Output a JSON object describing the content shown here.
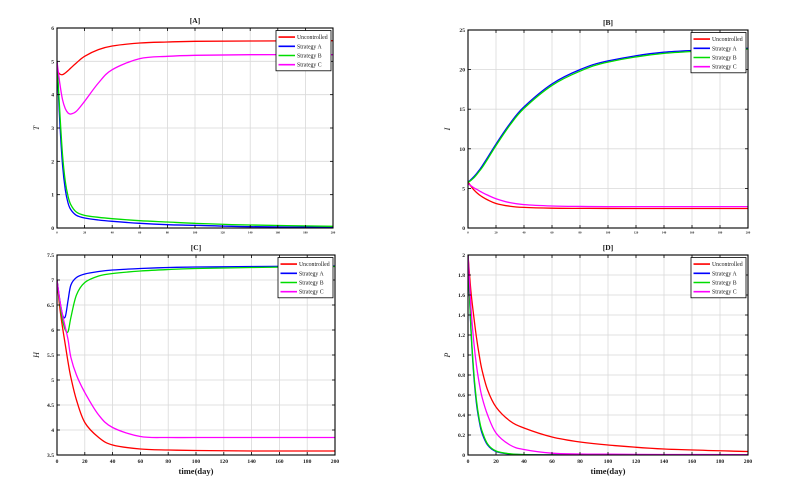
{
  "figure": {
    "background": "#ffffff",
    "grid_color": "#d9d9d9",
    "box_color": "#000000",
    "text_color": "#1a1a1a"
  },
  "chart_data": [
    {
      "id": "A",
      "type": "line",
      "title": "[A]",
      "xlabel": "",
      "ylabel": "T",
      "xlim": [
        0,
        200
      ],
      "ylim": [
        0,
        6
      ],
      "xticks": [
        0,
        20,
        40,
        60,
        80,
        100,
        120,
        140,
        160,
        180,
        200
      ],
      "xtick_labels": [
        "0",
        "20",
        "40",
        "60",
        "80",
        "100",
        "120",
        "140",
        "160",
        "180",
        "200"
      ],
      "xtick_labels_tiny": true,
      "yticks": [
        0,
        1,
        2,
        3,
        4,
        5,
        6
      ],
      "ytick_labels": [
        "0",
        "1",
        "2",
        "3",
        "4",
        "5",
        "6"
      ],
      "grid": true,
      "legend_position": "top-right",
      "x": [
        0,
        2,
        4,
        6,
        8,
        10,
        14,
        20,
        30,
        40,
        60,
        80,
        100,
        140,
        200
      ],
      "series": [
        {
          "name": "Uncontrolled",
          "color": "#ff0000",
          "values": [
            4.72,
            4.62,
            4.6,
            4.65,
            4.72,
            4.8,
            4.95,
            5.15,
            5.35,
            5.46,
            5.55,
            5.58,
            5.6,
            5.61,
            5.62
          ]
        },
        {
          "name": "Strategy A",
          "color": "#0000ff",
          "values": [
            5.0,
            3.2,
            1.9,
            1.15,
            0.75,
            0.55,
            0.38,
            0.3,
            0.24,
            0.2,
            0.14,
            0.1,
            0.08,
            0.04,
            0.02
          ]
        },
        {
          "name": "Strategy B",
          "color": "#00dd00",
          "values": [
            5.0,
            3.5,
            2.2,
            1.4,
            0.95,
            0.7,
            0.48,
            0.38,
            0.32,
            0.28,
            0.22,
            0.18,
            0.14,
            0.09,
            0.05
          ]
        },
        {
          "name": "Strategy C",
          "color": "#ff00ff",
          "values": [
            5.0,
            4.35,
            3.85,
            3.58,
            3.45,
            3.42,
            3.5,
            3.8,
            4.35,
            4.75,
            5.08,
            5.15,
            5.18,
            5.2,
            5.2
          ]
        }
      ]
    },
    {
      "id": "B",
      "type": "line",
      "title": "[B]",
      "xlabel": "",
      "ylabel": "I",
      "xlim": [
        0,
        200
      ],
      "ylim": [
        0,
        25
      ],
      "xticks": [
        0,
        20,
        40,
        60,
        80,
        100,
        120,
        140,
        160,
        180,
        200
      ],
      "xtick_labels": [
        "0",
        "20",
        "40",
        "60",
        "80",
        "100",
        "120",
        "140",
        "160",
        "180",
        "200"
      ],
      "xtick_labels_tiny": true,
      "yticks": [
        0,
        5,
        10,
        15,
        20,
        25
      ],
      "ytick_labels": [
        "0",
        "5",
        "10",
        "15",
        "20",
        "25"
      ],
      "grid": true,
      "legend_position": "top-right",
      "x": [
        0,
        2,
        4,
        6,
        8,
        10,
        14,
        20,
        30,
        40,
        60,
        80,
        100,
        140,
        200
      ],
      "series": [
        {
          "name": "Uncontrolled",
          "color": "#ff0000",
          "values": [
            5.8,
            5.3,
            4.85,
            4.5,
            4.2,
            3.95,
            3.55,
            3.1,
            2.75,
            2.6,
            2.5,
            2.48,
            2.47,
            2.46,
            2.46
          ]
        },
        {
          "name": "Strategy A",
          "color": "#0000ff",
          "values": [
            5.8,
            6.1,
            6.45,
            6.85,
            7.3,
            7.8,
            8.9,
            10.6,
            13.2,
            15.3,
            18.2,
            20.0,
            21.1,
            22.2,
            22.7
          ]
        },
        {
          "name": "Strategy B",
          "color": "#00dd00",
          "values": [
            5.75,
            6.0,
            6.3,
            6.7,
            7.15,
            7.6,
            8.7,
            10.4,
            13.0,
            15.1,
            18.0,
            19.8,
            20.95,
            22.05,
            22.6
          ]
        },
        {
          "name": "Strategy C",
          "color": "#ff00ff",
          "values": [
            5.6,
            5.35,
            5.1,
            4.9,
            4.7,
            4.5,
            4.15,
            3.7,
            3.2,
            2.95,
            2.78,
            2.72,
            2.7,
            2.7,
            2.7
          ]
        }
      ]
    },
    {
      "id": "C",
      "type": "line",
      "title": "[C]",
      "xlabel": "time(day)",
      "ylabel": "H",
      "xlim": [
        0,
        200
      ],
      "ylim": [
        3.5,
        7.5
      ],
      "xticks": [
        0,
        20,
        40,
        60,
        80,
        100,
        120,
        140,
        160,
        180,
        200
      ],
      "xtick_labels": [
        "0",
        "20",
        "40",
        "60",
        "80",
        "100",
        "120",
        "140",
        "160",
        "180",
        "200"
      ],
      "xtick_labels_tiny": false,
      "yticks": [
        3.5,
        4,
        4.5,
        5,
        5.5,
        6,
        6.5,
        7,
        7.5
      ],
      "ytick_labels": [
        "3.5",
        "4",
        "4.5",
        "5",
        "5.5",
        "6",
        "6.5",
        "7",
        "7.5"
      ],
      "grid": true,
      "legend_position": "top-right",
      "x": [
        0,
        2,
        4,
        6,
        8,
        10,
        14,
        20,
        30,
        40,
        60,
        80,
        100,
        140,
        200
      ],
      "series": [
        {
          "name": "Uncontrolled",
          "color": "#ff0000",
          "values": [
            7.0,
            6.45,
            6.05,
            5.7,
            5.35,
            5.05,
            4.6,
            4.15,
            3.85,
            3.7,
            3.62,
            3.6,
            3.59,
            3.58,
            3.58
          ]
        },
        {
          "name": "Strategy A",
          "color": "#0000ff",
          "values": [
            7.0,
            6.6,
            6.3,
            6.27,
            6.6,
            6.9,
            7.05,
            7.12,
            7.17,
            7.2,
            7.23,
            7.25,
            7.26,
            7.27,
            7.28
          ]
        },
        {
          "name": "Strategy B",
          "color": "#00dd00",
          "values": [
            7.0,
            6.55,
            6.2,
            6.0,
            5.97,
            6.25,
            6.7,
            6.95,
            7.08,
            7.13,
            7.18,
            7.21,
            7.23,
            7.25,
            7.27
          ]
        },
        {
          "name": "Strategy C",
          "color": "#ff00ff",
          "values": [
            7.0,
            6.6,
            6.3,
            6.05,
            5.8,
            5.45,
            5.1,
            4.75,
            4.3,
            4.05,
            3.87,
            3.85,
            3.85,
            3.85,
            3.85
          ]
        }
      ]
    },
    {
      "id": "D",
      "type": "line",
      "title": "[D]",
      "xlabel": "time(day)",
      "ylabel": "P",
      "xlim": [
        0,
        200
      ],
      "ylim": [
        0,
        2
      ],
      "xticks": [
        0,
        20,
        40,
        60,
        80,
        100,
        120,
        140,
        160,
        180,
        200
      ],
      "xtick_labels": [
        "0",
        "20",
        "40",
        "60",
        "80",
        "100",
        "120",
        "140",
        "160",
        "180",
        "200"
      ],
      "xtick_labels_tiny": false,
      "yticks": [
        0,
        0.2,
        0.4,
        0.6,
        0.8,
        1,
        1.2,
        1.4,
        1.6,
        1.8,
        2
      ],
      "ytick_labels": [
        "0",
        "0.2",
        "0.4",
        "0.6",
        "0.8",
        "1",
        "1.2",
        "1.4",
        "1.6",
        "1.8",
        "2"
      ],
      "grid": true,
      "legend_position": "top-right",
      "x": [
        0,
        2,
        4,
        6,
        8,
        10,
        14,
        20,
        30,
        40,
        60,
        80,
        100,
        140,
        200
      ],
      "series": [
        {
          "name": "Uncontrolled",
          "color": "#ff0000",
          "values": [
            2.0,
            1.65,
            1.4,
            1.18,
            1.0,
            0.85,
            0.65,
            0.48,
            0.34,
            0.27,
            0.18,
            0.13,
            0.1,
            0.06,
            0.035
          ]
        },
        {
          "name": "Strategy A",
          "color": "#0000ff",
          "values": [
            2.0,
            1.28,
            0.82,
            0.52,
            0.34,
            0.22,
            0.1,
            0.035,
            0.01,
            0.003,
            0.001,
            0.0,
            0.0,
            0.0,
            0.0
          ]
        },
        {
          "name": "Strategy B",
          "color": "#00dd00",
          "values": [
            2.0,
            1.3,
            0.85,
            0.55,
            0.36,
            0.24,
            0.11,
            0.04,
            0.012,
            0.004,
            0.001,
            0.0,
            0.0,
            0.0,
            0.0
          ]
        },
        {
          "name": "Strategy C",
          "color": "#ff00ff",
          "values": [
            2.0,
            1.5,
            1.15,
            0.9,
            0.72,
            0.58,
            0.4,
            0.22,
            0.1,
            0.055,
            0.018,
            0.01,
            0.008,
            0.005,
            0.004
          ]
        }
      ]
    }
  ]
}
